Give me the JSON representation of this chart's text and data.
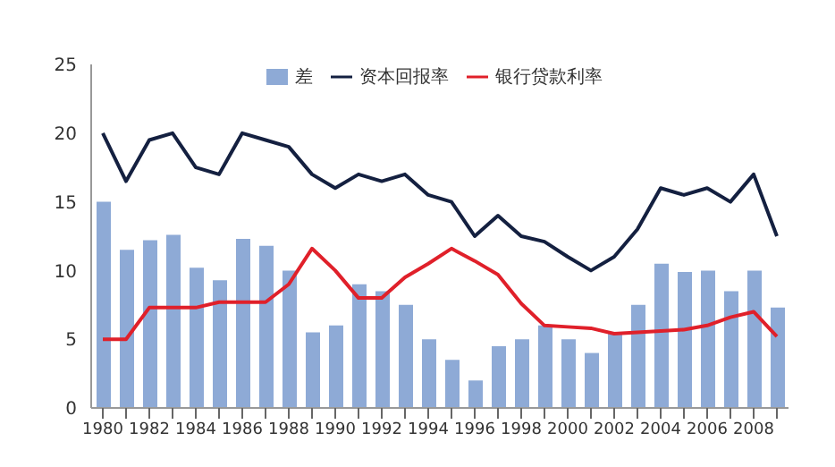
{
  "chart_data": {
    "type": "bar",
    "categories": [
      "1980",
      null,
      "1982",
      null,
      "1984",
      null,
      "1986",
      null,
      "1988",
      null,
      "1990",
      null,
      "1992",
      null,
      "1994",
      null,
      "1996",
      null,
      "1998",
      null,
      "2000",
      null,
      "2002",
      null,
      "2004",
      null,
      "2006",
      null,
      "2008",
      null
    ],
    "series": [
      {
        "name": "差",
        "color": "#8eaad6",
        "values": [
          15,
          11.5,
          12.2,
          12.6,
          10.2,
          9.3,
          12.3,
          11.8,
          10,
          5.5,
          6,
          9,
          8.5,
          7.5,
          5,
          3.5,
          2,
          4.5,
          5,
          6,
          5,
          4,
          5.5,
          7.5,
          10.5,
          9.9,
          10,
          8.5,
          10,
          7.3
        ]
      },
      {
        "name": "资本回报率",
        "type": "line",
        "color": "#142040",
        "values": [
          20,
          16.5,
          19.5,
          20,
          17.5,
          17,
          20,
          19.5,
          19,
          17,
          16,
          17,
          16.5,
          17,
          15.5,
          15,
          12.5,
          14,
          12.5,
          12.1,
          11,
          10,
          11,
          13,
          16,
          15.5,
          16,
          15,
          17,
          12.5
        ]
      },
      {
        "name": "银行贷款利率",
        "type": "line",
        "color": "#e0202a",
        "values": [
          5,
          5,
          7.3,
          7.3,
          7.3,
          7.7,
          7.7,
          7.7,
          9,
          11.6,
          10,
          8,
          8,
          9.5,
          10.5,
          11.6,
          10.7,
          9.7,
          7.6,
          6,
          5.9,
          5.8,
          5.4,
          5.5,
          5.6,
          5.7,
          6,
          6.6,
          7,
          5.2
        ]
      }
    ],
    "ylim": [
      0,
      25
    ],
    "yticks": [
      0,
      5,
      10,
      15,
      20,
      25
    ],
    "grid": false,
    "legend": "top",
    "marker": "none"
  }
}
